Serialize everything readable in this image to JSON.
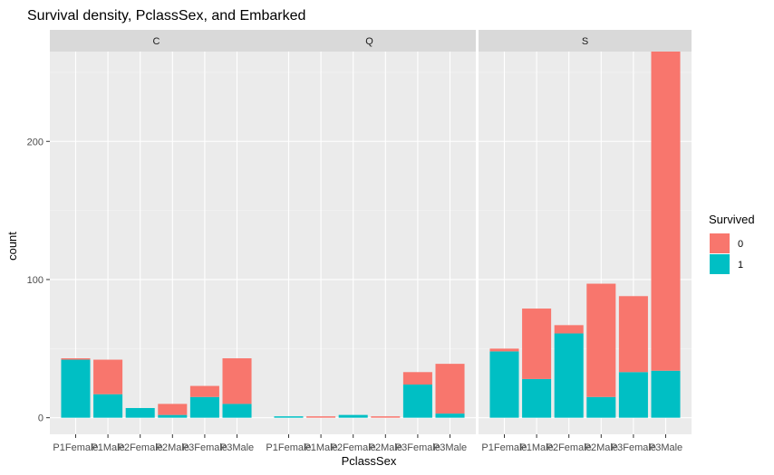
{
  "chart_data": {
    "type": "bar",
    "stacked": true,
    "title": "Survival density, PclassSex, and Embarked",
    "xlabel": "PclassSex",
    "ylabel": "count",
    "ylim": [
      -12,
      265
    ],
    "yticks": [
      0,
      100,
      200
    ],
    "grid": true,
    "legend_position": "right",
    "categories": [
      "P1Female",
      "P1Male",
      "P2Female",
      "P2Male",
      "P3Female",
      "P3Male"
    ],
    "legend": {
      "title": "Survived",
      "items": [
        {
          "label": "0",
          "color": "#F8766D"
        },
        {
          "label": "1",
          "color": "#00BFC4"
        }
      ]
    },
    "facets": [
      {
        "label": "C",
        "series": [
          {
            "name": "0",
            "values": [
              1,
              25,
              0,
              8,
              8,
              33
            ]
          },
          {
            "name": "1",
            "values": [
              42,
              17,
              7,
              2,
              15,
              10
            ]
          }
        ]
      },
      {
        "label": "Q",
        "series": [
          {
            "name": "0",
            "values": [
              0,
              1,
              0,
              1,
              9,
              36
            ]
          },
          {
            "name": "1",
            "values": [
              1,
              0,
              2,
              0,
              24,
              3
            ]
          }
        ]
      },
      {
        "label": "S",
        "series": [
          {
            "name": "0",
            "values": [
              2,
              51,
              6,
              82,
              55,
              231
            ]
          },
          {
            "name": "1",
            "values": [
              48,
              28,
              61,
              15,
              33,
              34
            ]
          }
        ]
      }
    ]
  }
}
